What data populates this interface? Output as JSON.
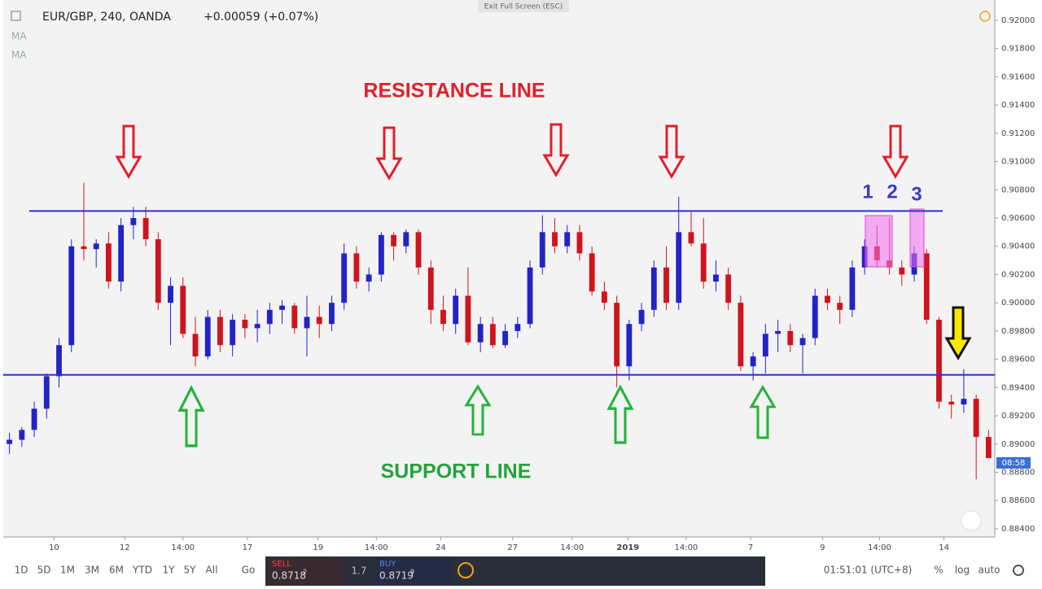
{
  "chart_data": {
    "type": "candlestick",
    "title": "EUR/GBP, 240, OANDA",
    "change": "+0.00059 (+0.07%)",
    "up_color": "#2323c8",
    "down_color": "#d0141e",
    "open": [
      0.89,
      0.8903,
      0.891,
      0.8925,
      0.8948,
      0.897,
      0.904,
      0.9038,
      0.9042,
      0.9015,
      0.9055,
      0.906,
      0.9045,
      0.9,
      0.9012,
      0.8978,
      0.8962,
      0.899,
      0.897,
      0.8988,
      0.8982,
      0.8985,
      0.8995,
      0.8998,
      0.8982,
      0.899,
      0.8985,
      0.9,
      0.9035,
      0.9015,
      0.902,
      0.9048,
      0.904,
      0.905,
      0.9025,
      0.8995,
      0.8985,
      0.9005,
      0.8972,
      0.8985,
      0.897,
      0.898,
      0.8985,
      0.9025,
      0.905,
      0.904,
      0.905,
      0.9035,
      0.9008,
      0.9,
      0.8955,
      0.8985,
      0.8995,
      0.9025,
      0.9,
      0.905,
      0.9042,
      0.9015,
      0.902,
      0.9,
      0.8955,
      0.8962,
      0.8978,
      0.898,
      0.897,
      0.8975,
      0.9005,
      0.9,
      0.8995,
      0.9025,
      0.904,
      0.903,
      0.9025,
      0.902,
      0.9035,
      0.8988,
      0.893,
      0.8928,
      0.8932,
      0.8905
    ],
    "high": [
      0.8908,
      0.8912,
      0.893,
      0.895,
      0.8975,
      0.9045,
      0.9085,
      0.9045,
      0.905,
      0.906,
      0.9068,
      0.9068,
      0.905,
      0.9018,
      0.9018,
      0.899,
      0.8995,
      0.8995,
      0.8992,
      0.8992,
      0.8995,
      0.9,
      0.9002,
      0.9,
      0.9005,
      0.8998,
      0.9005,
      0.9042,
      0.904,
      0.9025,
      0.905,
      0.905,
      0.9052,
      0.9052,
      0.903,
      0.9005,
      0.901,
      0.9025,
      0.899,
      0.899,
      0.8985,
      0.899,
      0.903,
      0.9062,
      0.906,
      0.9055,
      0.9055,
      0.904,
      0.9015,
      0.9005,
      0.8988,
      0.9,
      0.903,
      0.904,
      0.9075,
      0.9065,
      0.906,
      0.903,
      0.9025,
      0.9005,
      0.8965,
      0.8985,
      0.8988,
      0.8985,
      0.8978,
      0.901,
      0.901,
      0.9005,
      0.903,
      0.9045,
      0.9055,
      0.906,
      0.903,
      0.904,
      0.9038,
      0.899,
      0.8935,
      0.8953,
      0.8935,
      0.891
    ],
    "low": [
      0.8893,
      0.8898,
      0.8905,
      0.8918,
      0.894,
      0.8965,
      0.903,
      0.9025,
      0.901,
      0.9008,
      0.9045,
      0.904,
      0.8995,
      0.897,
      0.8975,
      0.8955,
      0.896,
      0.8965,
      0.8962,
      0.8975,
      0.8972,
      0.8978,
      0.8985,
      0.8978,
      0.8962,
      0.8975,
      0.898,
      0.8995,
      0.901,
      0.9008,
      0.9015,
      0.903,
      0.9035,
      0.902,
      0.8985,
      0.898,
      0.8978,
      0.897,
      0.8965,
      0.8968,
      0.8968,
      0.8975,
      0.8982,
      0.902,
      0.9035,
      0.9035,
      0.903,
      0.9005,
      0.8995,
      0.894,
      0.8945,
      0.898,
      0.899,
      0.8995,
      0.8995,
      0.904,
      0.901,
      0.9008,
      0.8995,
      0.8952,
      0.8945,
      0.895,
      0.8965,
      0.8965,
      0.895,
      0.897,
      0.8995,
      0.8985,
      0.899,
      0.902,
      0.9025,
      0.902,
      0.9012,
      0.9015,
      0.8985,
      0.8925,
      0.8918,
      0.8922,
      0.8875,
      0.889
    ],
    "close": [
      0.8903,
      0.891,
      0.8925,
      0.8948,
      0.897,
      0.904,
      0.9038,
      0.9042,
      0.9015,
      0.9055,
      0.906,
      0.9045,
      0.9,
      0.9012,
      0.8978,
      0.8962,
      0.899,
      0.897,
      0.8988,
      0.8982,
      0.8985,
      0.8995,
      0.8998,
      0.8982,
      0.899,
      0.8985,
      0.9,
      0.9035,
      0.9015,
      0.902,
      0.9048,
      0.904,
      0.905,
      0.9025,
      0.8995,
      0.8985,
      0.9005,
      0.8972,
      0.8985,
      0.897,
      0.898,
      0.8985,
      0.9025,
      0.905,
      0.904,
      0.905,
      0.9035,
      0.9008,
      0.9,
      0.8955,
      0.8985,
      0.8995,
      0.9025,
      0.9,
      0.905,
      0.9042,
      0.9015,
      0.902,
      0.9,
      0.8955,
      0.8962,
      0.8978,
      0.898,
      0.897,
      0.8975,
      0.9005,
      0.9,
      0.8995,
      0.9025,
      0.904,
      0.903,
      0.9025,
      0.902,
      0.9035,
      0.8988,
      0.893,
      0.8928,
      0.8932,
      0.8905,
      0.889
    ],
    "xlim": [
      -0.5,
      79.5
    ],
    "xticks": [
      {
        "value": 3.6,
        "label": "10"
      },
      {
        "value": 9.3,
        "label": "12"
      },
      {
        "value": 14.0,
        "label": "14:00"
      },
      {
        "value": 19.2,
        "label": "17"
      },
      {
        "value": 24.9,
        "label": "19"
      },
      {
        "value": 29.6,
        "label": "14:00"
      },
      {
        "value": 34.8,
        "label": "24"
      },
      {
        "value": 40.6,
        "label": "27"
      },
      {
        "value": 45.4,
        "label": "14:00"
      },
      {
        "value": 49.9,
        "label": "2019"
      },
      {
        "value": 54.6,
        "label": "14:00"
      },
      {
        "value": 59.8,
        "label": "7"
      },
      {
        "value": 65.6,
        "label": "9"
      },
      {
        "value": 70.2,
        "label": "14:00"
      },
      {
        "value": 75.4,
        "label": "14"
      }
    ],
    "ylim": [
      0.88342,
      0.92144
    ],
    "yticks": [
      {
        "value": 0.92,
        "label": "0.92000"
      },
      {
        "value": 0.918,
        "label": "0.91800"
      },
      {
        "value": 0.916,
        "label": "0.91600"
      },
      {
        "value": 0.914,
        "label": "0.91400"
      },
      {
        "value": 0.912,
        "label": "0.91200"
      },
      {
        "value": 0.91,
        "label": "0.91000"
      },
      {
        "value": 0.908,
        "label": "0.90800"
      },
      {
        "value": 0.906,
        "label": "0.90600"
      },
      {
        "value": 0.904,
        "label": "0.90400"
      },
      {
        "value": 0.902,
        "label": "0.90200"
      },
      {
        "value": 0.9,
        "label": "0.90000"
      },
      {
        "value": 0.898,
        "label": "0.89800"
      },
      {
        "value": 0.896,
        "label": "0.89600"
      },
      {
        "value": 0.894,
        "label": "0.89400"
      },
      {
        "value": 0.892,
        "label": "0.89200"
      },
      {
        "value": 0.89,
        "label": "0.89000"
      },
      {
        "value": 0.888,
        "label": "0.88800"
      },
      {
        "value": 0.886,
        "label": "0.88600"
      },
      {
        "value": 0.884,
        "label": "0.88400"
      }
    ],
    "resistance": {
      "label": "RESISTANCE LINE",
      "value": 0.9065
    },
    "support": {
      "label": "SUPPORT LINE",
      "value": 0.8949
    },
    "markers": [
      "1",
      "2",
      "3"
    ],
    "indicators": [
      "MA",
      "MA"
    ],
    "countdown": "08:58"
  },
  "ui": {
    "exit": "Exit Full Screen (ESC)",
    "ranges": [
      "1D",
      "5D",
      "1M",
      "3M",
      "6M",
      "YTD",
      "1Y",
      "5Y",
      "All",
      "Go"
    ],
    "sell": "SELL",
    "sell_price": "0.8718",
    "sell_pip": "2",
    "spread": "1.7",
    "buy": "BUY",
    "buy_price": "0.8719",
    "buy_pip": "9",
    "time": "01:51:01 (UTC+8)",
    "scale": [
      "%",
      "log",
      "auto"
    ]
  }
}
